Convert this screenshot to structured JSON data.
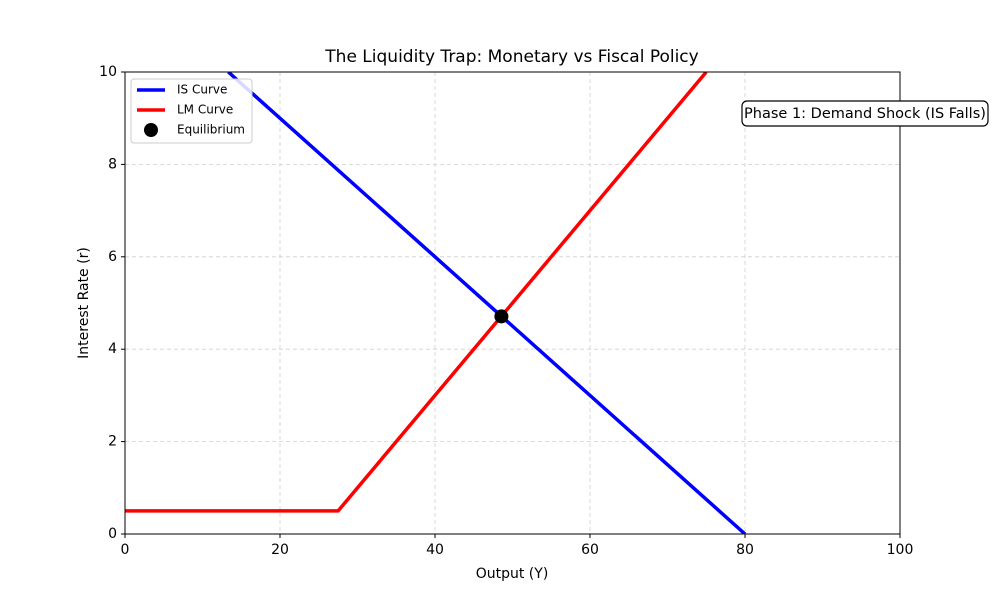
{
  "chart_data": {
    "type": "line",
    "title": "The Liquidity Trap: Monetary vs Fiscal Policy",
    "xlabel": "Output (Y)",
    "ylabel": "Interest Rate (r)",
    "xlim": [
      0,
      100
    ],
    "ylim": [
      0,
      10
    ],
    "xticks": [
      0,
      20,
      40,
      60,
      80,
      100
    ],
    "yticks": [
      0,
      2,
      4,
      6,
      8,
      10
    ],
    "grid": true,
    "legend": "upper left",
    "annotation": "Phase 1: Demand Shock (IS Falls)",
    "series": [
      {
        "name": "IS Curve",
        "color": "#0000ff",
        "type": "line",
        "x": [
          13.33,
          80
        ],
        "values": [
          10,
          0
        ]
      },
      {
        "name": "LM Curve",
        "color": "#ff0000",
        "type": "line",
        "x": [
          0,
          27.5,
          75
        ],
        "values": [
          0.5,
          0.5,
          10
        ]
      },
      {
        "name": "Equilibrium",
        "color": "#000000",
        "type": "scatter",
        "x": [
          48.57
        ],
        "values": [
          4.71
        ]
      }
    ]
  }
}
